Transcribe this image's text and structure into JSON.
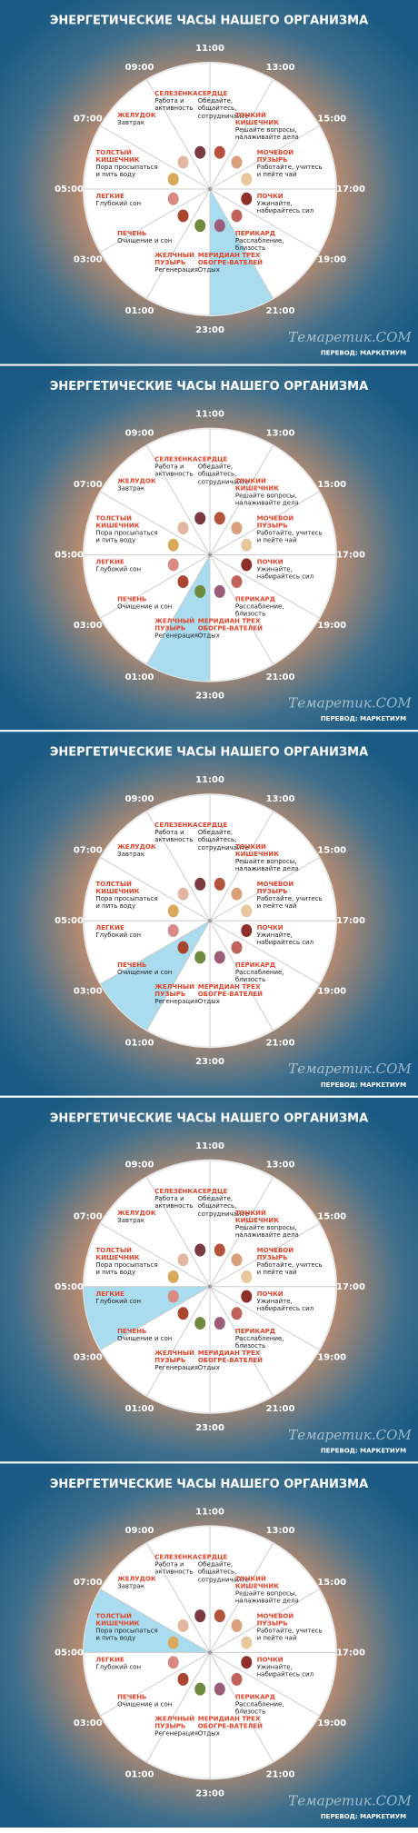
{
  "title": "ЭНЕРГЕТИЧЕСКИЕ ЧАСЫ НАШЕГО ОРГАНИЗМА",
  "hours": [
    "11:00",
    "13:00",
    "15:00",
    "17:00",
    "19:00",
    "21:00",
    "23:00",
    "01:00",
    "03:00",
    "05:00",
    "07:00",
    "09:00"
  ],
  "sectors": [
    {
      "organ": "СЕРДЦЕ",
      "text": "Обедайте, общайтесь, сотрудничайте"
    },
    {
      "organ": "ТОНКИЙ КИШЕЧНИК",
      "text": "Решайте вопросы, налаживайте дела"
    },
    {
      "organ": "МОЧЕВОЙ ПУЗЫРЬ",
      "text": "Работайте, учитесь и пейте чай"
    },
    {
      "organ": "ПОЧКИ",
      "text": "Ужинайте, набирайтесь сил"
    },
    {
      "organ": "ПЕРИКАРД",
      "text": "Расслабление, близость"
    },
    {
      "organ": "МЕРИДИАН ТРЕХ ОБОГРЕ-ВАТЕЛЕЙ",
      "text": "Отдых"
    },
    {
      "organ": "ЖЕЛЧНЫЙ ПУЗЫРЬ",
      "text": "Регенерация"
    },
    {
      "organ": "ПЕЧЕНЬ",
      "text": "Очищение и сон"
    },
    {
      "organ": "ЛЕГКИЕ",
      "text": "Глубокий сон"
    },
    {
      "organ": "ТОЛСТЫЙ КИШЕЧНИК",
      "text": "Пора просыпаться и пить воду"
    },
    {
      "organ": "ЖЕЛУДОК",
      "text": "Завтрак"
    },
    {
      "organ": "СЕЛЕЗЕНКА",
      "text": "Работа и активность"
    }
  ],
  "credit": "ПЕРЕВОД: МАРКЕТИУМ",
  "watermark": "Темаретик.COM",
  "panels": [
    {
      "highlight": 5
    },
    {
      "highlight": 6
    },
    {
      "highlight": 7
    },
    {
      "highlight": 8
    },
    {
      "highlight": 9
    }
  ]
}
